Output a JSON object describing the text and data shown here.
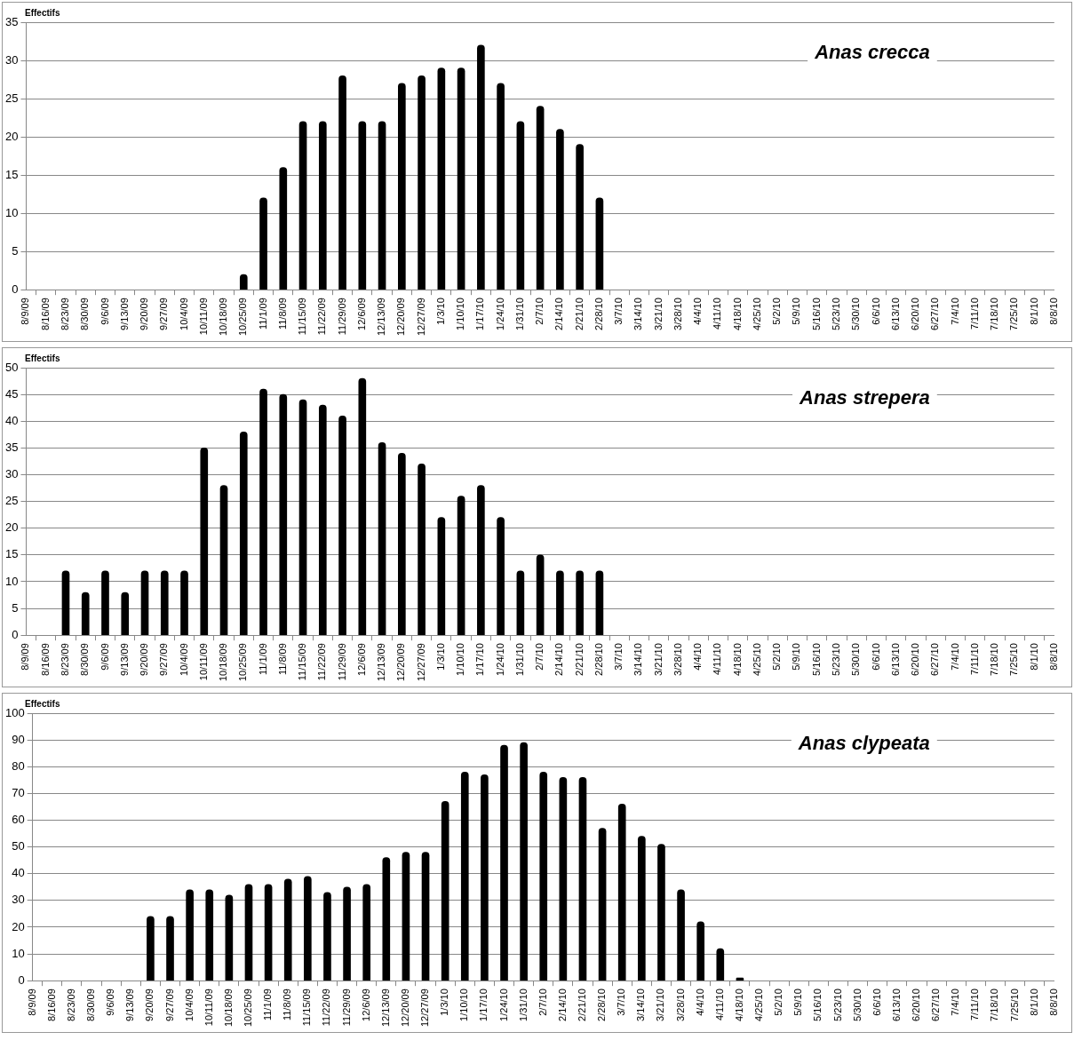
{
  "chart_data": [
    {
      "type": "bar",
      "title": "Anas crecca",
      "ylabel": "Effectifs",
      "categories": [
        "8/9/09",
        "8/16/09",
        "8/23/09",
        "8/30/09",
        "9/6/09",
        "9/13/09",
        "9/20/09",
        "9/27/09",
        "10/4/09",
        "10/11/09",
        "10/18/09",
        "10/25/09",
        "11/1/09",
        "11/8/09",
        "11/15/09",
        "11/22/09",
        "11/29/09",
        "12/6/09",
        "12/13/09",
        "12/20/09",
        "12/27/09",
        "1/3/10",
        "1/10/10",
        "1/17/10",
        "1/24/10",
        "1/31/10",
        "2/7/10",
        "2/14/10",
        "2/21/10",
        "2/28/10",
        "3/7/10",
        "3/14/10",
        "3/21/10",
        "3/28/10",
        "4/4/10",
        "4/11/10",
        "4/18/10",
        "4/25/10",
        "5/2/10",
        "5/9/10",
        "5/16/10",
        "5/23/10",
        "5/30/10",
        "6/6/10",
        "6/13/10",
        "6/20/10",
        "6/27/10",
        "7/4/10",
        "7/11/10",
        "7/18/10",
        "7/25/10",
        "8/1/10",
        "8/8/10"
      ],
      "values": [
        null,
        null,
        null,
        null,
        null,
        null,
        null,
        null,
        null,
        null,
        null,
        2,
        12,
        16,
        22,
        22,
        28,
        22,
        22,
        27,
        28,
        29,
        29,
        32,
        27,
        22,
        24,
        21,
        19,
        12,
        null,
        null,
        null,
        null,
        null,
        null,
        null,
        null,
        null,
        null,
        null,
        null,
        null,
        null,
        null,
        null,
        null,
        null,
        null,
        null,
        null,
        null,
        null
      ],
      "color": "#000000",
      "ylim": [
        0,
        35
      ],
      "yticks": [
        0,
        5,
        10,
        15,
        20,
        25,
        30,
        35
      ],
      "grid": "y"
    },
    {
      "type": "bar",
      "title": "Anas strepera",
      "ylabel": "Effectifs",
      "categories": [
        "8/9/09",
        "8/16/09",
        "8/23/09",
        "8/30/09",
        "9/6/09",
        "9/13/09",
        "9/20/09",
        "9/27/09",
        "10/4/09",
        "10/11/09",
        "10/18/09",
        "10/25/09",
        "11/1/09",
        "11/8/09",
        "11/15/09",
        "11/22/09",
        "11/29/09",
        "12/6/09",
        "12/13/09",
        "12/20/09",
        "12/27/09",
        "1/3/10",
        "1/10/10",
        "1/17/10",
        "1/24/10",
        "1/31/10",
        "2/7/10",
        "2/14/10",
        "2/21/10",
        "2/28/10",
        "3/7/10",
        "3/14/10",
        "3/21/10",
        "3/28/10",
        "4/4/10",
        "4/11/10",
        "4/18/10",
        "4/25/10",
        "5/2/10",
        "5/9/10",
        "5/16/10",
        "5/23/10",
        "5/30/10",
        "6/6/10",
        "6/13/10",
        "6/20/10",
        "6/27/10",
        "7/4/10",
        "7/11/10",
        "7/18/10",
        "7/25/10",
        "8/1/10",
        "8/8/10"
      ],
      "values": [
        null,
        null,
        12,
        8,
        12,
        8,
        12,
        12,
        12,
        35,
        28,
        38,
        46,
        45,
        44,
        43,
        41,
        48,
        36,
        34,
        32,
        22,
        26,
        28,
        22,
        12,
        15,
        12,
        12,
        12,
        null,
        null,
        null,
        null,
        null,
        null,
        null,
        null,
        null,
        null,
        null,
        null,
        null,
        null,
        null,
        null,
        null,
        null,
        null,
        null,
        null,
        null,
        null
      ],
      "color": "#000000",
      "ylim": [
        0,
        50
      ],
      "yticks": [
        0,
        5,
        10,
        15,
        20,
        25,
        30,
        35,
        40,
        45,
        50
      ],
      "grid": "y"
    },
    {
      "type": "bar",
      "title": "Anas clypeata",
      "ylabel": "Effectifs",
      "categories": [
        "8/9/09",
        "8/16/09",
        "8/23/09",
        "8/30/09",
        "9/6/09",
        "9/13/09",
        "9/20/09",
        "9/27/09",
        "10/4/09",
        "10/11/09",
        "10/18/09",
        "10/25/09",
        "11/1/09",
        "11/8/09",
        "11/15/09",
        "11/22/09",
        "11/29/09",
        "12/6/09",
        "12/13/09",
        "12/20/09",
        "12/27/09",
        "1/3/10",
        "1/10/10",
        "1/17/10",
        "1/24/10",
        "1/31/10",
        "2/7/10",
        "2/14/10",
        "2/21/10",
        "2/28/10",
        "3/7/10",
        "3/14/10",
        "3/21/10",
        "3/28/10",
        "4/4/10",
        "4/11/10",
        "4/18/10",
        "4/25/10",
        "5/2/10",
        "5/9/10",
        "5/16/10",
        "5/23/10",
        "5/30/10",
        "6/6/10",
        "6/13/10",
        "6/20/10",
        "6/27/10",
        "7/4/10",
        "7/11/10",
        "7/18/10",
        "7/25/10",
        "8/1/10",
        "8/8/10"
      ],
      "values": [
        null,
        null,
        null,
        null,
        null,
        null,
        24,
        24,
        34,
        34,
        32,
        36,
        36,
        38,
        39,
        33,
        35,
        36,
        46,
        48,
        48,
        67,
        78,
        77,
        88,
        89,
        78,
        76,
        76,
        57,
        66,
        54,
        51,
        34,
        22,
        12,
        1,
        null,
        null,
        null,
        null,
        null,
        null,
        null,
        null,
        null,
        null,
        null,
        null,
        null,
        null,
        null,
        null
      ],
      "color": "#000000",
      "ylim": [
        0,
        100
      ],
      "yticks": [
        0,
        10,
        20,
        30,
        40,
        50,
        60,
        70,
        80,
        90,
        100
      ],
      "grid": "y"
    }
  ]
}
